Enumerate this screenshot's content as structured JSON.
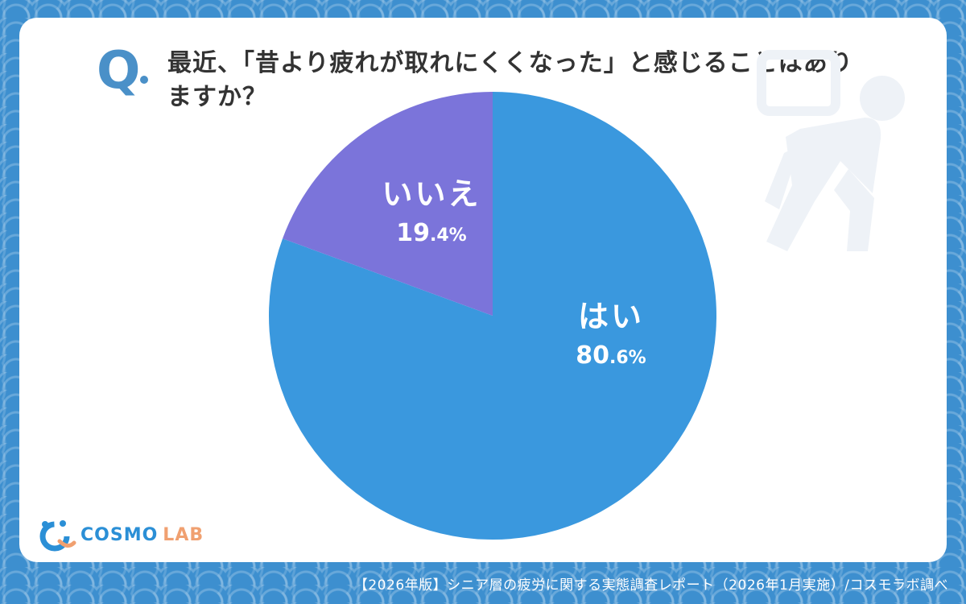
{
  "question": {
    "mark": "Q",
    "text": "最近、「昔より疲れが取れにくくなった」と感じることはありますか？"
  },
  "colors": {
    "yes": "#3a98de",
    "no": "#7b74da",
    "accent": "#4a90c8",
    "background": "#3d8fcf"
  },
  "chart_data": {
    "type": "pie",
    "title": "最近、「昔より疲れが取れにくくなった」と感じることはありますか？",
    "slices": [
      {
        "label": "はい",
        "value": 80.6,
        "value_label": "80.6%",
        "int": "80",
        "dec": ".6%",
        "color": "#3a98de"
      },
      {
        "label": "いいえ",
        "value": 19.4,
        "value_label": "19.4%",
        "int": "19",
        "dec": ".4%",
        "color": "#7b74da"
      }
    ]
  },
  "logo": {
    "main": "COSMO",
    "sub": "LAB"
  },
  "footer": "【2026年版】シニア層の疲労に関する実態調査レポート（2026年1月実施）/コスモラボ調べ"
}
